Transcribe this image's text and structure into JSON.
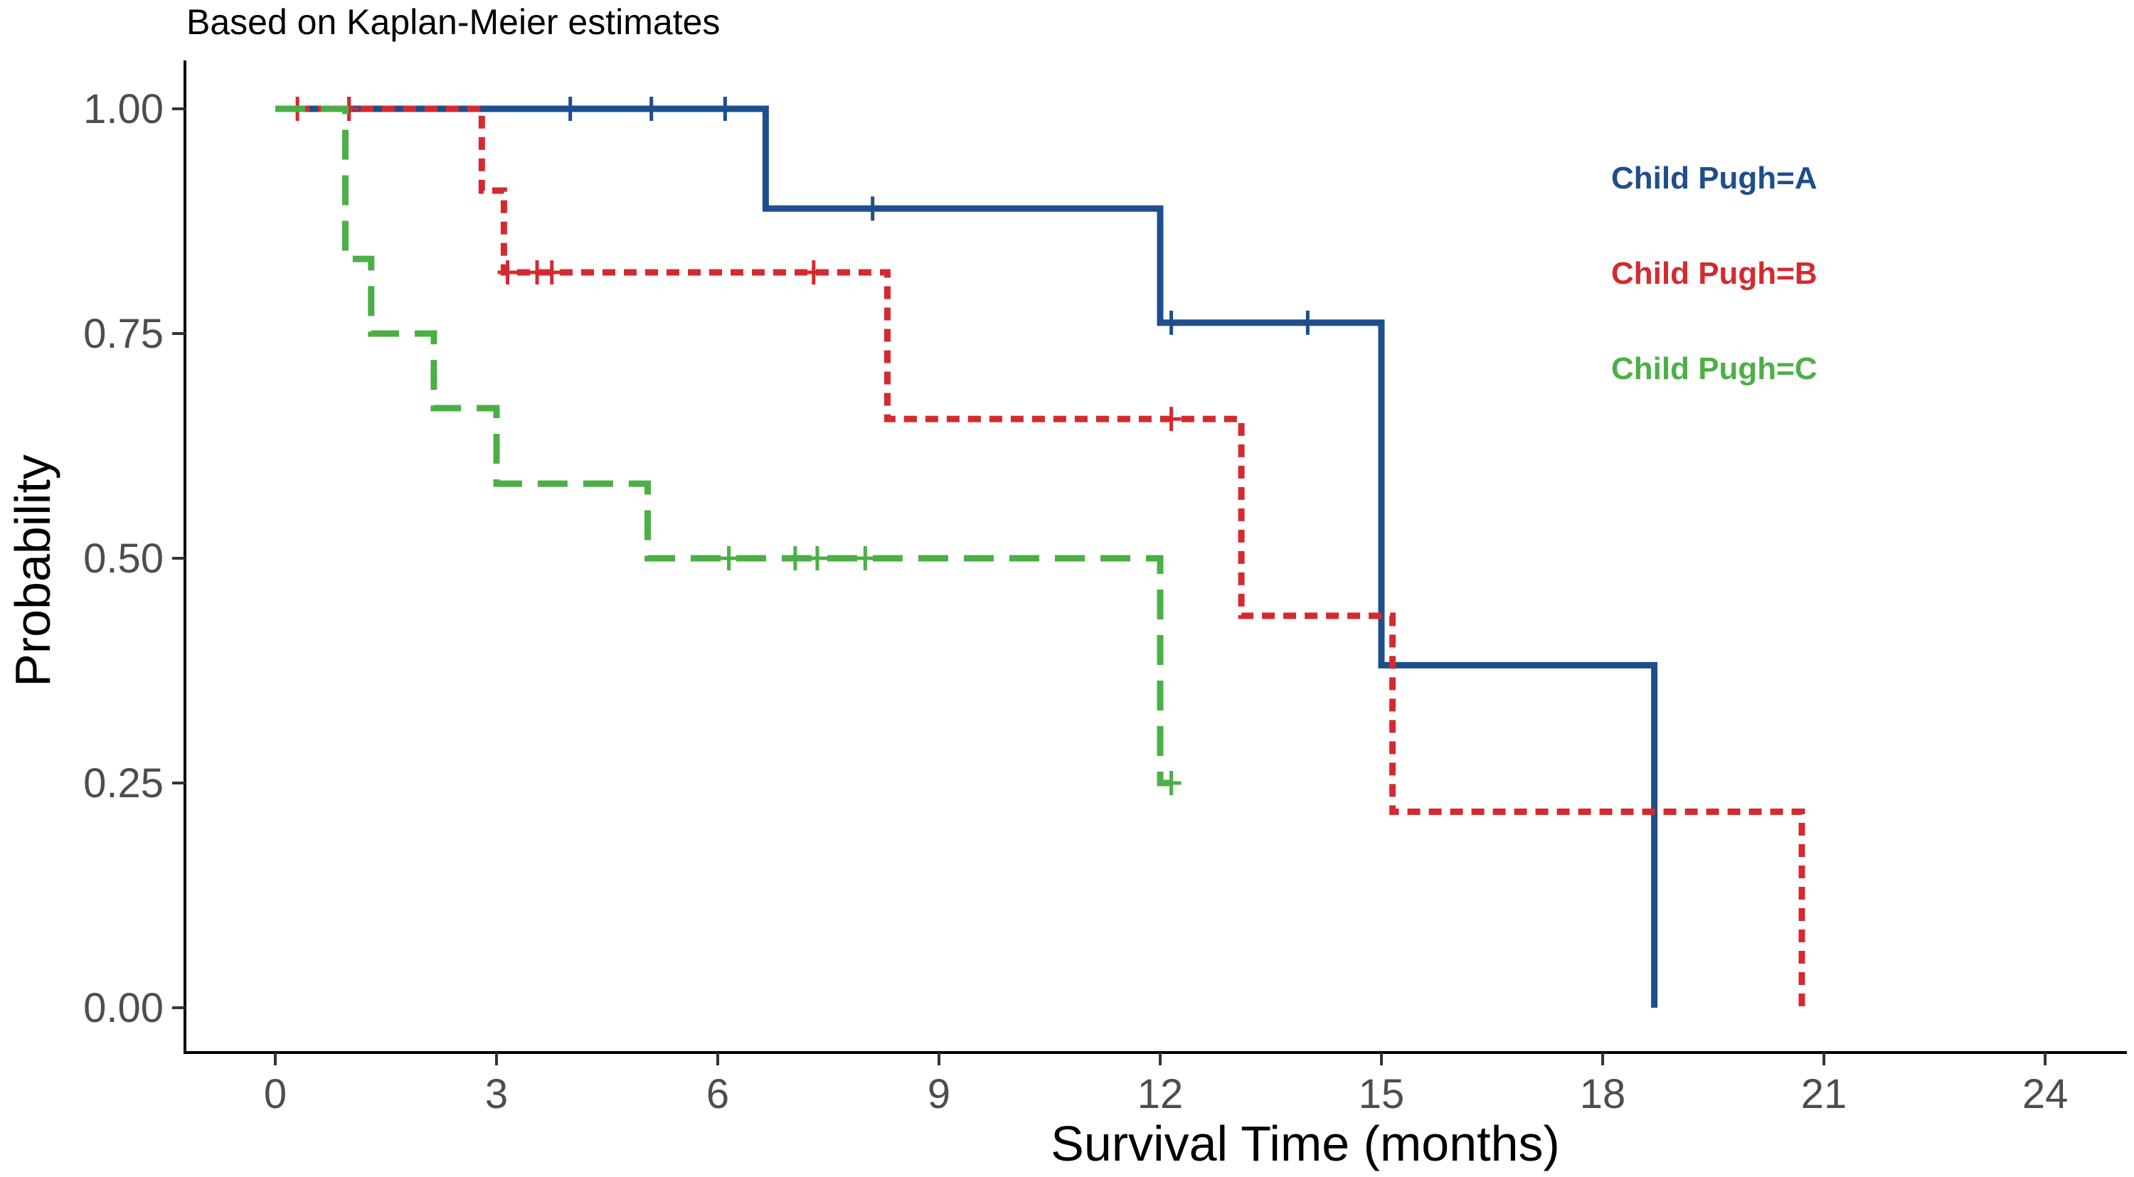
{
  "chart_data": {
    "type": "line",
    "subtitle": "Based on Kaplan-Meier estimates",
    "xlabel": "Survival Time (months)",
    "ylabel": "Probability",
    "xlim": [
      0,
      24
    ],
    "ylim": [
      0,
      1
    ],
    "x_ticks": [
      "0",
      "3",
      "6",
      "9",
      "12",
      "15",
      "18",
      "21",
      "24"
    ],
    "x_tick_values": [
      0,
      3,
      6,
      9,
      12,
      15,
      18,
      21,
      24
    ],
    "y_ticks": [
      "0.00",
      "0.25",
      "0.50",
      "0.75",
      "1.00"
    ],
    "y_tick_values": [
      0,
      0.25,
      0.5,
      0.75,
      1.0
    ],
    "grid": false,
    "legend_position": "top-right",
    "series": [
      {
        "name": "Child Pugh=A",
        "color": "#1f4e8c",
        "dash": "solid",
        "steps": [
          [
            0,
            1.0
          ],
          [
            6.65,
            0.889
          ],
          [
            12.0,
            0.762
          ],
          [
            15.0,
            0.381
          ],
          [
            18.7,
            0.0
          ]
        ],
        "end_x": 18.7,
        "censored": [
          [
            1.0,
            1.0
          ],
          [
            4.0,
            1.0
          ],
          [
            5.1,
            1.0
          ],
          [
            6.1,
            1.0
          ],
          [
            8.1,
            0.889
          ],
          [
            12.15,
            0.762
          ],
          [
            14.0,
            0.762
          ]
        ]
      },
      {
        "name": "Child Pugh=B",
        "color": "#d42a2f",
        "dash": "dotted",
        "steps": [
          [
            0,
            1.0
          ],
          [
            2.8,
            0.909
          ],
          [
            3.1,
            0.818
          ],
          [
            8.3,
            0.655
          ],
          [
            13.1,
            0.436
          ],
          [
            15.15,
            0.218
          ],
          [
            20.7,
            0.0
          ]
        ],
        "end_x": 20.7,
        "censored": [
          [
            0.3,
            1.0
          ],
          [
            1.0,
            1.0
          ],
          [
            3.15,
            0.818
          ],
          [
            3.55,
            0.818
          ],
          [
            3.75,
            0.818
          ],
          [
            7.3,
            0.818
          ],
          [
            12.15,
            0.655
          ]
        ]
      },
      {
        "name": "Child Pugh=C",
        "color": "#4caf46",
        "dash": "dashed",
        "steps": [
          [
            0,
            1.0
          ],
          [
            0.95,
            0.833
          ],
          [
            1.3,
            0.75
          ],
          [
            2.15,
            0.667
          ],
          [
            3.0,
            0.583
          ],
          [
            5.05,
            0.5
          ],
          [
            12.0,
            0.25
          ]
        ],
        "end_x": 12.15,
        "censored": [
          [
            6.15,
            0.5
          ],
          [
            7.05,
            0.5
          ],
          [
            7.35,
            0.5
          ],
          [
            8.0,
            0.5
          ],
          [
            12.15,
            0.25
          ]
        ]
      }
    ]
  }
}
